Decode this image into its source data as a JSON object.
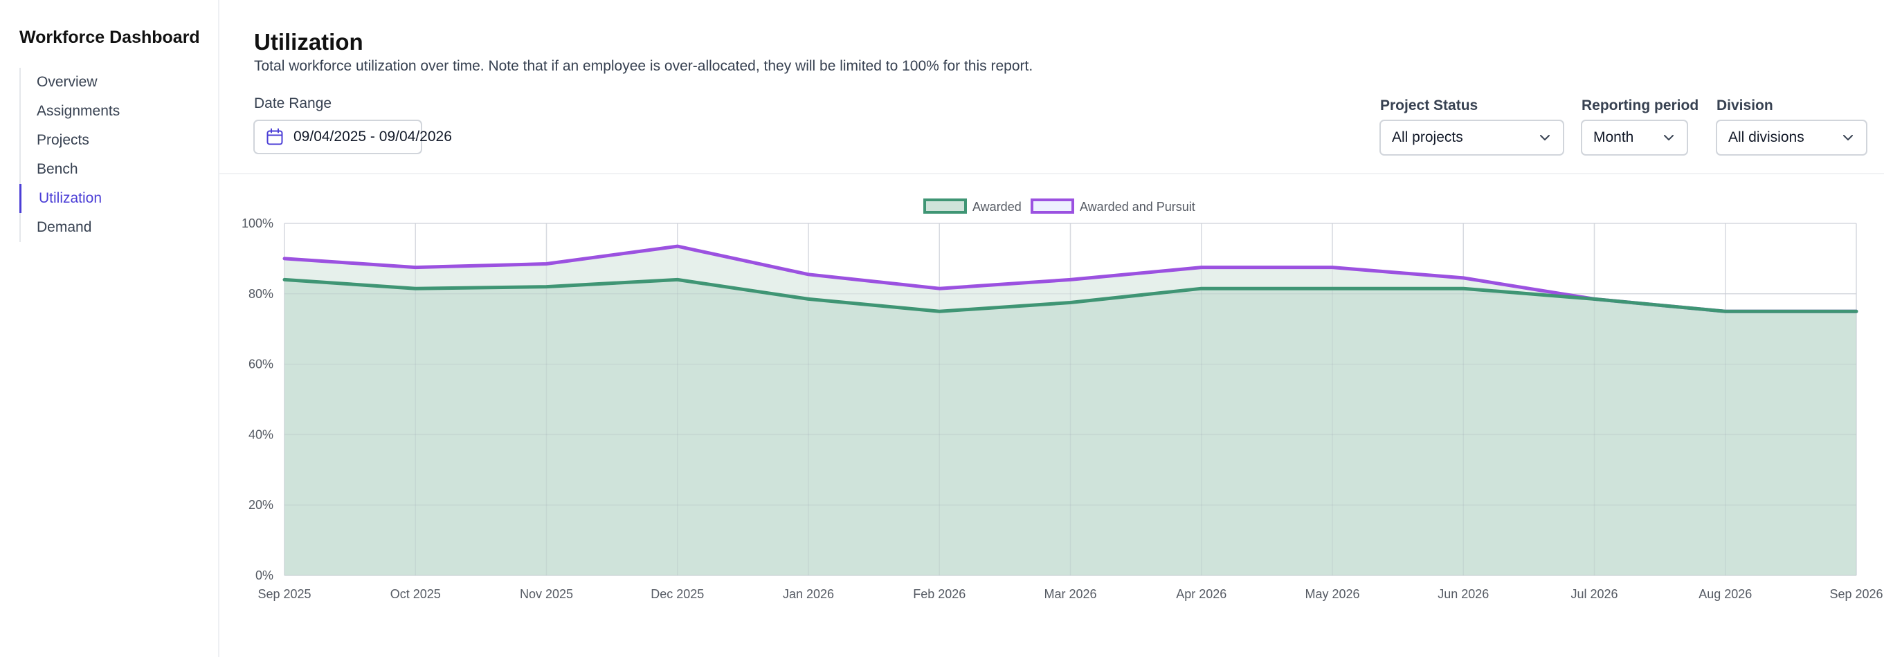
{
  "sidebar": {
    "title": "Workforce Dashboard",
    "items": [
      {
        "label": "Overview",
        "active": false
      },
      {
        "label": "Assignments",
        "active": false
      },
      {
        "label": "Projects",
        "active": false
      },
      {
        "label": "Bench",
        "active": false
      },
      {
        "label": "Utilization",
        "active": true
      },
      {
        "label": "Demand",
        "active": false
      }
    ]
  },
  "header": {
    "title": "Utilization",
    "description": "Total workforce utilization over time. Note that if an employee is over-allocated, they will be limited to 100% for this report."
  },
  "filters": {
    "date_range": {
      "label": "Date Range",
      "value": "09/04/2025 - 09/04/2026",
      "icon": "calendar-icon"
    },
    "project_status": {
      "label": "Project Status",
      "value": "All projects"
    },
    "reporting_period": {
      "label": "Reporting period",
      "value": "Month"
    },
    "division": {
      "label": "Division",
      "value": "All divisions"
    }
  },
  "colors": {
    "accent": "#4b3ed6",
    "awarded": "#3f9574",
    "awarded_fill": "#cfe3da",
    "pursuit": "#9b51e0",
    "pursuit_fill": "#e6f0eb"
  },
  "chart_data": {
    "type": "area",
    "x": [
      "Sep 2025",
      "Oct 2025",
      "Nov 2025",
      "Dec 2025",
      "Jan 2026",
      "Feb 2026",
      "Mar 2026",
      "Apr 2026",
      "May 2026",
      "Jun 2026",
      "Jul 2026",
      "Aug 2026",
      "Sep 2026"
    ],
    "series": [
      {
        "name": "Awarded",
        "values": [
          84,
          81.5,
          82,
          84,
          78.5,
          75,
          77.5,
          81.5,
          81.5,
          81.5,
          78.5,
          75,
          75
        ]
      },
      {
        "name": "Awarded and Pursuit",
        "values": [
          90,
          87.5,
          88.5,
          93.5,
          85.5,
          81.5,
          84,
          87.5,
          87.5,
          84.5,
          78.5,
          75,
          75
        ]
      }
    ],
    "y_ticks": [
      "0%",
      "20%",
      "40%",
      "60%",
      "80%",
      "100%"
    ],
    "ylim": [
      0,
      100
    ],
    "legend_position": "top-center",
    "grid": true
  }
}
